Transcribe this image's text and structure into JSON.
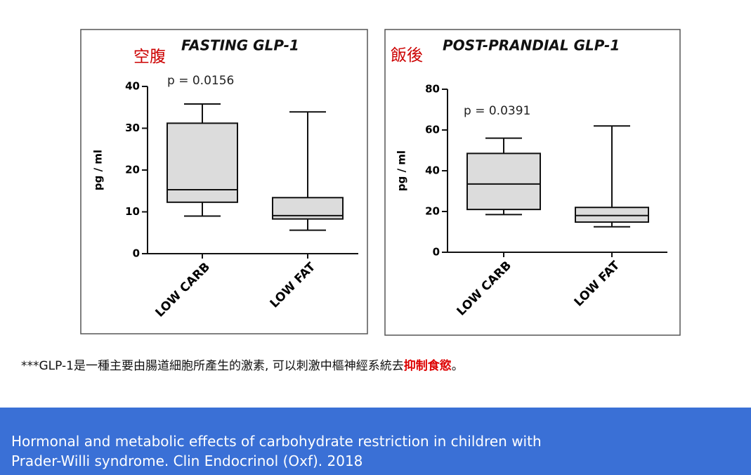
{
  "chart_data": [
    {
      "type": "box",
      "title": "FASTING GLP-1",
      "annotation": "空腹",
      "p_value_text": "p = 0.0156",
      "y_label": "pg / ml",
      "categories": [
        "LOW CARB",
        "LOW FAT"
      ],
      "min": [
        9,
        5.6
      ],
      "q1": [
        12.3,
        8.3
      ],
      "median": [
        15.3,
        9.1
      ],
      "q3": [
        31.2,
        13.4
      ],
      "max": [
        35.8,
        33.9
      ],
      "color": "#dcdcdc",
      "ylim": [
        0,
        40
      ],
      "yticks": [
        0,
        10,
        20,
        30,
        40
      ]
    },
    {
      "type": "box",
      "title": "POST-PRANDIAL GLP-1",
      "annotation": "飯後",
      "p_value_text": "p = 0.0391",
      "y_label": "pg / ml",
      "categories": [
        "LOW CARB",
        "LOW FAT"
      ],
      "min": [
        18.5,
        12.5
      ],
      "q1": [
        21,
        14.8
      ],
      "median": [
        33.5,
        18
      ],
      "q3": [
        48.5,
        22
      ],
      "max": [
        56,
        62
      ],
      "color": "#dcdcdc",
      "ylim": [
        0,
        80
      ],
      "yticks": [
        0,
        20,
        40,
        60,
        80
      ]
    }
  ],
  "footnote": {
    "text": "***GLP-1是一種主要由腸道細胞所產生的激素, 可以刺激中樞神經系統去",
    "highlight": "抑制食慾",
    "end": "。"
  },
  "citation": {
    "line1": "Hormonal and metabolic effects of carbohydrate restriction in children with",
    "line2": "Prader-Willi syndrome. Clin Endocrinol (Oxf). 2018"
  }
}
